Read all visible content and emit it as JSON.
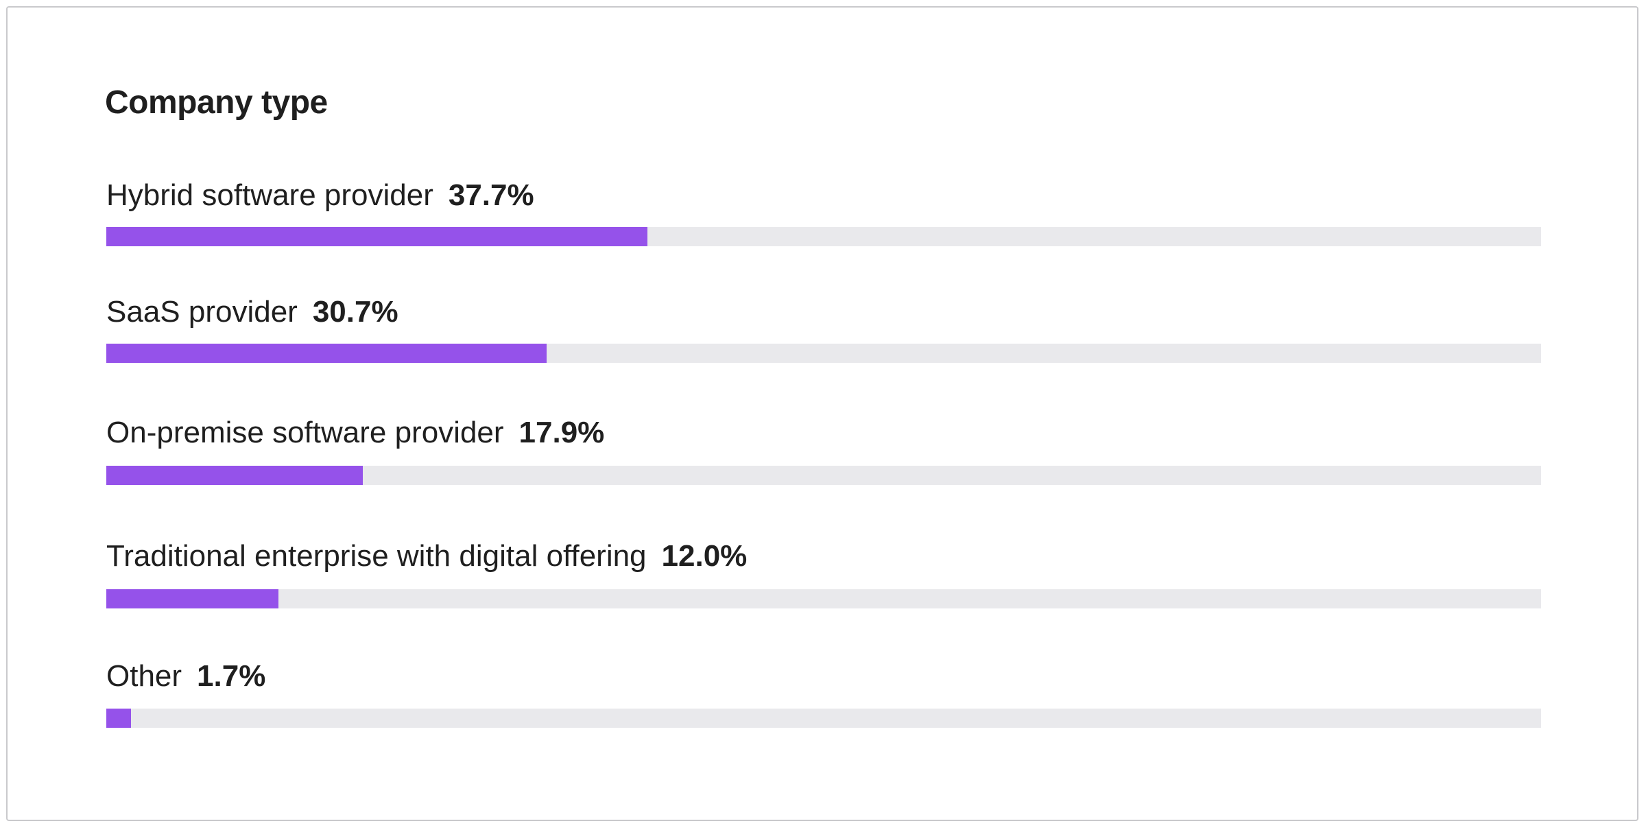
{
  "chart_data": {
    "type": "bar",
    "orientation": "horizontal",
    "title": "Company type",
    "xlim": [
      0,
      100
    ],
    "grid": false,
    "categories": [
      "Hybrid software provider",
      "SaaS provider",
      "On-premise software provider",
      "Traditional enterprise with digital offering",
      "Other"
    ],
    "values": [
      37.7,
      30.7,
      17.9,
      12.0,
      1.7
    ],
    "value_labels": [
      "37.7%",
      "30.7%",
      "17.9%",
      "12.0%",
      "1.7%"
    ],
    "bar_color": "#9552ea",
    "track_color": "#e9e9ec"
  }
}
